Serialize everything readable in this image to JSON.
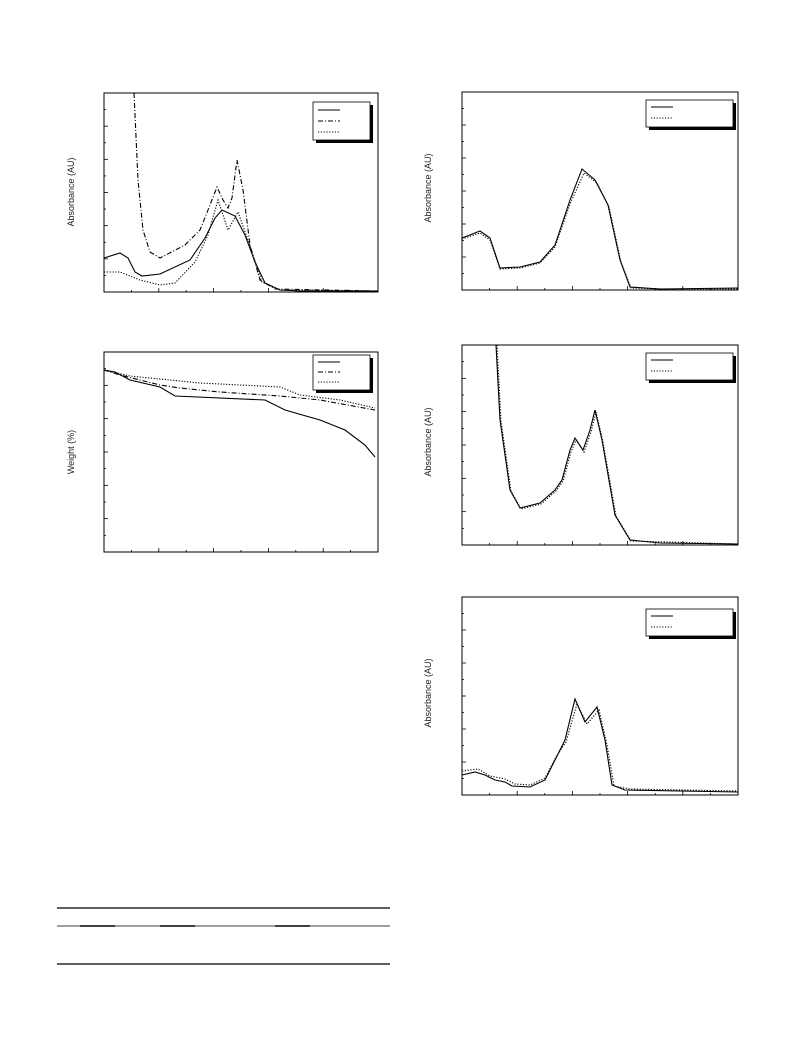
{
  "figures": [
    {
      "y_label": "Absorbance (AU)"
    },
    {
      "y_label": "Weight (%)"
    },
    {
      "y_label": "Absorbance (AU)"
    },
    {
      "y_label": "Absorbance (AU)"
    },
    {
      "y_label": "Absorbance (AU)"
    }
  ]
}
